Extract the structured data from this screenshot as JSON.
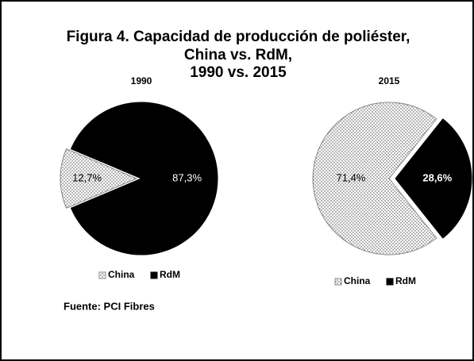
{
  "title": [
    "Figura 4. Capacidad de producción de poliéster,",
    "China vs. RdM,",
    "1990 vs. 2015"
  ],
  "source": "Fuente: PCI Fibres",
  "chart_data": [
    {
      "type": "pie",
      "title": "1990",
      "categories": [
        "China",
        "RdM"
      ],
      "values": [
        12.7,
        87.3
      ],
      "value_labels": [
        "12,7%",
        "87,3%"
      ],
      "colors": [
        "#000000",
        "#000000"
      ],
      "fills": [
        "dots",
        "solid"
      ],
      "legend": "bottom"
    },
    {
      "type": "pie",
      "title": "2015",
      "categories": [
        "China",
        "RdM"
      ],
      "values": [
        71.4,
        28.6
      ],
      "value_labels": [
        "71,4%",
        "28,6%"
      ],
      "colors": [
        "#000000",
        "#000000"
      ],
      "fills": [
        "dots",
        "solid"
      ],
      "legend": "bottom"
    }
  ]
}
